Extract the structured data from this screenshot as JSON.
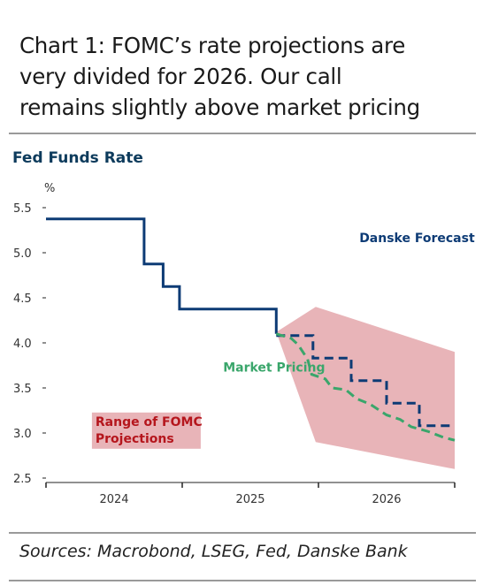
{
  "header": {
    "title_lines": [
      "Chart 1: FOMC’s rate projections are",
      "very divided for 2026. Our call",
      "remains slightly above market pricing"
    ]
  },
  "footer": {
    "source": "Sources: Macrobond, LSEG, Fed, Danske Bank"
  },
  "chart_data": {
    "type": "line",
    "title": "Fed Funds Rate",
    "ylabel": "%",
    "xlabel": "",
    "ylim": [
      2.5,
      5.5
    ],
    "yticks": [
      5.5,
      5.0,
      4.5,
      4.0,
      3.5,
      3.0,
      2.5
    ],
    "yticks_labels": [
      "5.5",
      "5.0",
      "4.5",
      "4.0",
      "3.5",
      "3.0",
      "2.5"
    ],
    "xlim": [
      2023.0,
      2026.0
    ],
    "xtick_marks": [
      2023.0,
      2024.0,
      2025.0,
      2026.0
    ],
    "xcategory_labels": [
      {
        "label": "2024",
        "x": 2023.5
      },
      {
        "label": "2025",
        "x": 2024.5
      },
      {
        "label": "2026",
        "x": 2025.5
      }
    ],
    "grid": false,
    "series": [
      {
        "style": "solid-step",
        "color": "#0d3b75",
        "points": [
          [
            2023.0,
            5.375
          ],
          [
            2023.72,
            5.375
          ],
          [
            2023.72,
            4.875
          ],
          [
            2023.86,
            4.875
          ],
          [
            2023.86,
            4.625
          ],
          [
            2023.98,
            4.625
          ],
          [
            2023.98,
            4.375
          ],
          [
            2024.69,
            4.375
          ],
          [
            2024.69,
            4.1
          ]
        ]
      },
      {
        "name": "Danske Forecast",
        "style": "dashed-step",
        "color": "#0d3b75",
        "points": [
          [
            2024.69,
            4.08
          ],
          [
            2024.96,
            4.08
          ],
          [
            2024.96,
            3.83
          ],
          [
            2025.24,
            3.83
          ],
          [
            2025.24,
            3.58
          ],
          [
            2025.5,
            3.58
          ],
          [
            2025.5,
            3.33
          ],
          [
            2025.74,
            3.33
          ],
          [
            2025.74,
            3.08
          ],
          [
            2026.0,
            3.08
          ]
        ]
      },
      {
        "name": "Market Pricing",
        "style": "dashed",
        "color": "#3aa66b",
        "points": [
          [
            2024.69,
            4.1
          ],
          [
            2024.8,
            4.05
          ],
          [
            2024.85,
            3.98
          ],
          [
            2024.92,
            3.82
          ],
          [
            2024.95,
            3.65
          ],
          [
            2025.05,
            3.6
          ],
          [
            2025.1,
            3.5
          ],
          [
            2025.2,
            3.48
          ],
          [
            2025.28,
            3.38
          ],
          [
            2025.38,
            3.32
          ],
          [
            2025.5,
            3.2
          ],
          [
            2025.6,
            3.15
          ],
          [
            2025.68,
            3.07
          ],
          [
            2025.8,
            3.02
          ],
          [
            2025.92,
            2.95
          ],
          [
            2026.0,
            2.92
          ]
        ]
      }
    ],
    "band": {
      "name": "Range of FOMC Projections",
      "color": "#e8b4b8",
      "points": [
        [
          2024.69,
          4.12
        ],
        [
          2024.98,
          4.4
        ],
        [
          2026.0,
          3.9
        ],
        [
          2026.0,
          2.6
        ],
        [
          2024.98,
          2.9
        ]
      ]
    },
    "annotations": [
      {
        "text": "Danske Forecast",
        "x": 2025.3,
        "y": 5.12,
        "color": "#0d3b75"
      },
      {
        "text": "Market Pricing",
        "x": 2024.3,
        "y": 3.68,
        "color": "#3aa66b"
      }
    ],
    "band_label": {
      "lines": [
        "Range of FOMC",
        "Projections"
      ],
      "color": "#b5161d",
      "x": 2023.35,
      "y": 3.1
    }
  }
}
